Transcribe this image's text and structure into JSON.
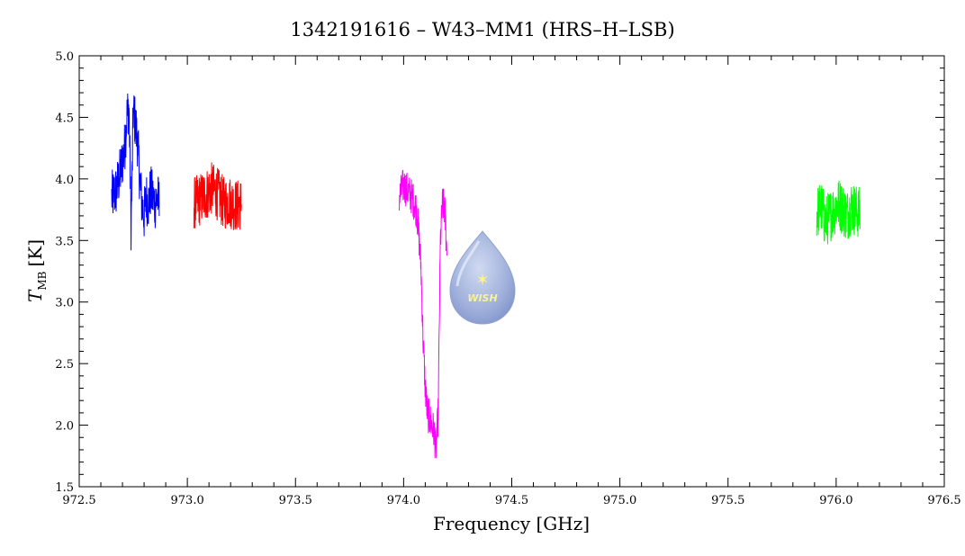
{
  "chart_data": {
    "type": "line",
    "title": "1342191616 – W43–MM1 (HRS–H–LSB)",
    "xlabel": "Frequency [GHz]",
    "ylabel_main": "T",
    "ylabel_sub": "MB",
    "ylabel_unit": "[K]",
    "xlim": [
      972.5,
      976.5
    ],
    "ylim": [
      1.5,
      5.0
    ],
    "x_major_ticks": [
      972.5,
      973.0,
      973.5,
      974.0,
      974.5,
      975.0,
      975.5,
      976.0,
      976.5
    ],
    "x_tick_labels": [
      "972.5",
      "973.0",
      "973.5",
      "974.0",
      "974.5",
      "975.0",
      "975.5",
      "976.0",
      "976.5"
    ],
    "y_major_ticks": [
      1.5,
      2.0,
      2.5,
      3.0,
      3.5,
      4.0,
      4.5,
      5.0
    ],
    "y_tick_labels": [
      "1.5",
      "2.0",
      "2.5",
      "3.0",
      "3.5",
      "4.0",
      "4.5",
      "5.0"
    ],
    "grid": false,
    "legend": "none",
    "watermark": {
      "text": "WISH"
    },
    "series": [
      {
        "color": "#0000ff",
        "x": [
          972.65,
          972.67,
          972.69,
          972.71,
          972.72,
          972.73,
          972.74,
          972.75,
          972.76,
          972.77,
          972.78,
          972.79,
          972.8,
          972.81,
          972.82,
          972.83,
          972.84,
          972.85,
          972.86,
          972.87
        ],
        "y": [
          3.85,
          3.9,
          4.05,
          4.25,
          4.5,
          4.6,
          3.6,
          4.55,
          4.45,
          4.3,
          4.0,
          3.8,
          3.7,
          3.85,
          3.8,
          3.9,
          3.85,
          3.8,
          3.85,
          3.8
        ],
        "noise": 0.22
      },
      {
        "color": "#ff0000",
        "x": [
          973.03,
          973.05,
          973.07,
          973.09,
          973.11,
          973.13,
          973.15,
          973.17,
          973.19,
          973.21,
          973.23,
          973.25
        ],
        "y": [
          3.8,
          3.82,
          3.85,
          3.88,
          3.92,
          3.9,
          3.85,
          3.8,
          3.82,
          3.8,
          3.78,
          3.8
        ],
        "noise": 0.22
      },
      {
        "color": "#ff00ff",
        "x": [
          973.98,
          974.0,
          974.02,
          974.04,
          974.06,
          974.07,
          974.08,
          974.09,
          974.1,
          974.11,
          974.12,
          974.13,
          974.14,
          974.15,
          974.16,
          974.17,
          974.18,
          974.19,
          974.2
        ],
        "y": [
          3.85,
          3.95,
          3.9,
          3.85,
          3.75,
          3.55,
          3.3,
          2.7,
          2.3,
          2.1,
          2.05,
          2.0,
          1.95,
          1.8,
          2.1,
          3.5,
          3.8,
          3.75,
          3.4
        ],
        "noise": 0.15
      },
      {
        "color": "#00ff00",
        "x": [
          975.91,
          975.93,
          975.95,
          975.97,
          975.99,
          976.01,
          976.03,
          976.05,
          976.07,
          976.09,
          976.11
        ],
        "y": [
          3.72,
          3.78,
          3.65,
          3.7,
          3.75,
          3.8,
          3.76,
          3.7,
          3.78,
          3.74,
          3.72
        ],
        "noise": 0.22
      }
    ]
  }
}
